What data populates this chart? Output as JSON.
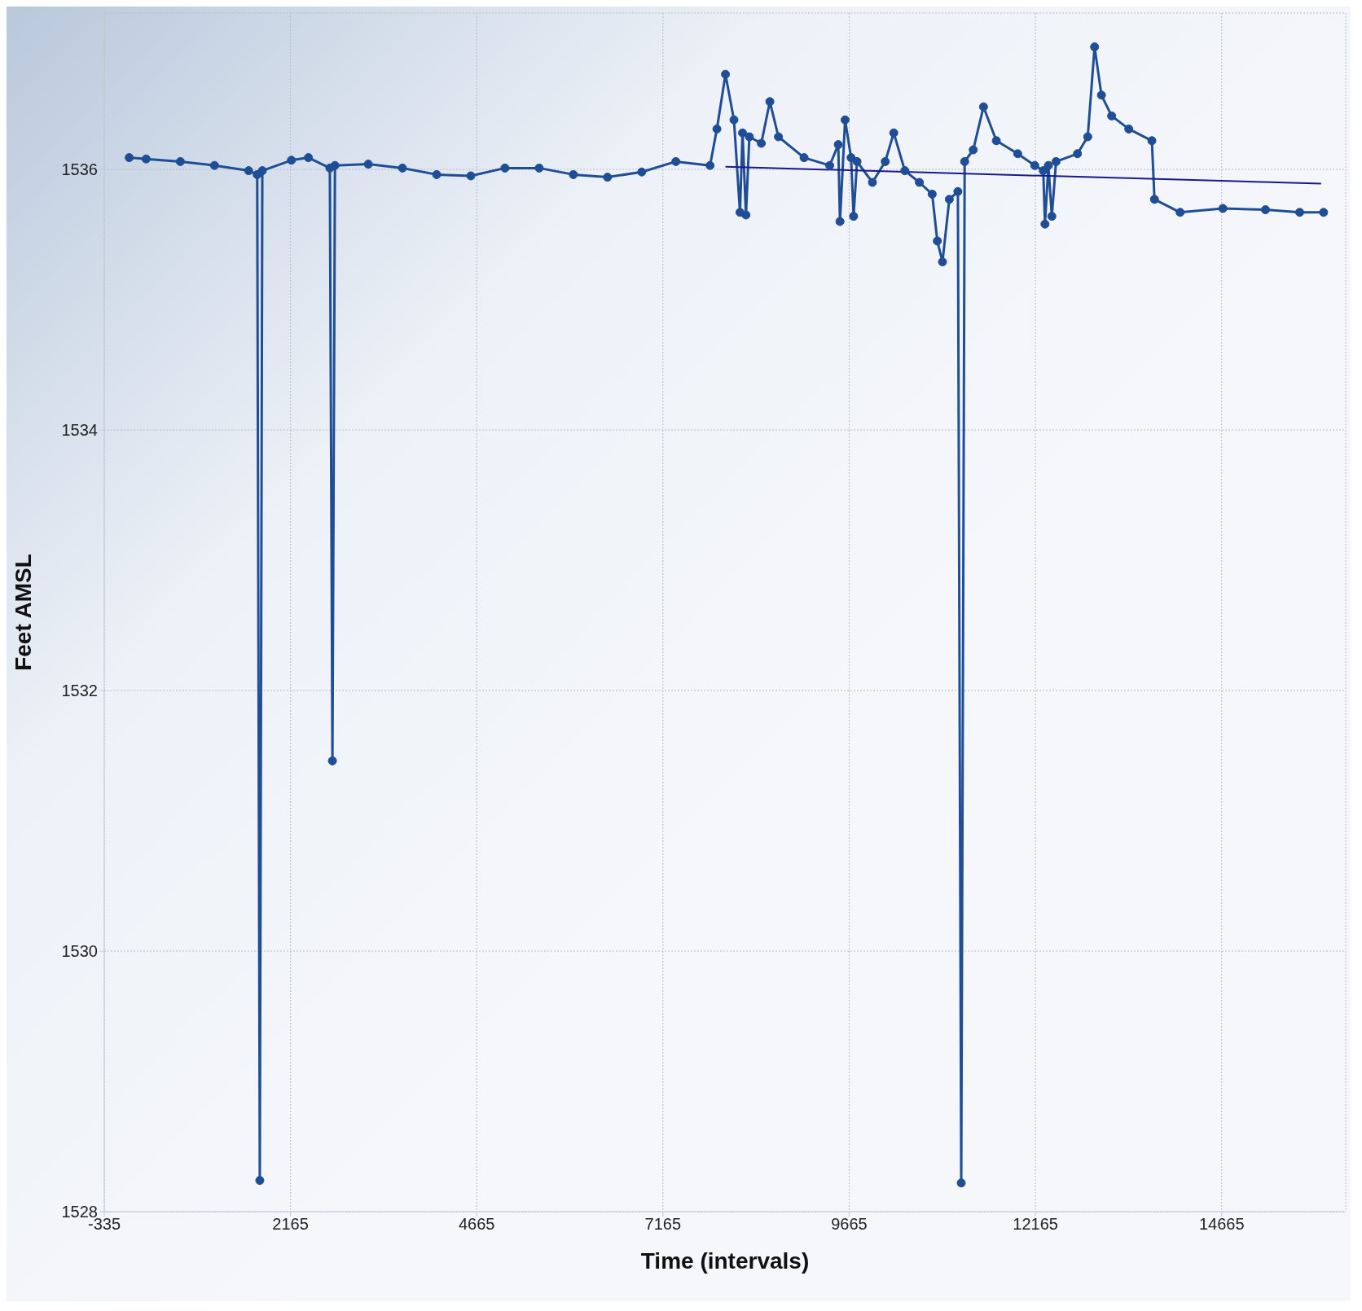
{
  "chart_data": {
    "type": "line",
    "xlabel": "Time (intervals)",
    "ylabel": "Feet AMSL",
    "xlim": [
      -335,
      16330
    ],
    "ylim": [
      1528,
      1537.2
    ],
    "xticks": [
      -335,
      2165,
      4665,
      7165,
      9665,
      12165,
      14665
    ],
    "yticks": [
      1528,
      1530,
      1532,
      1534,
      1536
    ],
    "grid": true,
    "marker": "circle",
    "line_style": "solid",
    "series": [
      {
        "color": "#1f4e96",
        "x": [
          0,
          227,
          686,
          1145,
          1603,
          1718,
          1753,
          1787,
          2177,
          2406,
          2693,
          2728,
          2762,
          3209,
          3668,
          4127,
          4586,
          5044,
          5503,
          5962,
          6421,
          6880,
          7338,
          7797,
          7889,
          8004,
          8118,
          8199,
          8233,
          8279,
          8325,
          8485,
          8600,
          8715,
          9059,
          9403,
          9518,
          9541,
          9610,
          9690,
          9724,
          9770,
          9977,
          10149,
          10263,
          10412,
          10607,
          10779,
          10848,
          10917,
          11009,
          11124,
          11169,
          11215,
          11330,
          11468,
          11640,
          11927,
          12156,
          12270,
          12293,
          12339,
          12385,
          12442,
          12729,
          12867,
          12959,
          13051,
          13188,
          13418,
          13728,
          13763,
          14107,
          14681,
          15253,
          15712,
          16033
        ],
        "values": [
          1536.09,
          1536.08,
          1536.06,
          1536.03,
          1535.99,
          1535.96,
          1528.24,
          1535.99,
          1536.07,
          1536.09,
          1536.01,
          1531.46,
          1536.03,
          1536.04,
          1536.01,
          1535.96,
          1535.95,
          1536.01,
          1536.01,
          1535.96,
          1535.94,
          1535.98,
          1536.06,
          1536.03,
          1536.31,
          1536.73,
          1536.38,
          1535.67,
          1536.28,
          1535.65,
          1536.25,
          1536.2,
          1536.52,
          1536.25,
          1536.09,
          1536.03,
          1536.19,
          1535.6,
          1536.38,
          1536.09,
          1535.64,
          1536.06,
          1535.9,
          1536.06,
          1536.28,
          1535.99,
          1535.9,
          1535.81,
          1535.45,
          1535.29,
          1535.77,
          1535.83,
          1528.22,
          1536.06,
          1536.15,
          1536.48,
          1536.22,
          1536.12,
          1536.03,
          1535.99,
          1535.58,
          1536.03,
          1535.64,
          1536.06,
          1536.12,
          1536.25,
          1536.94,
          1536.57,
          1536.41,
          1536.31,
          1536.22,
          1535.77,
          1535.67,
          1535.7,
          1535.69,
          1535.67,
          1535.67
        ]
      },
      {
        "type": "line",
        "color": "#1a1a8c",
        "marker": "none",
        "x": [
          8004,
          16000
        ],
        "values": [
          1536.02,
          1535.89
        ]
      }
    ]
  }
}
